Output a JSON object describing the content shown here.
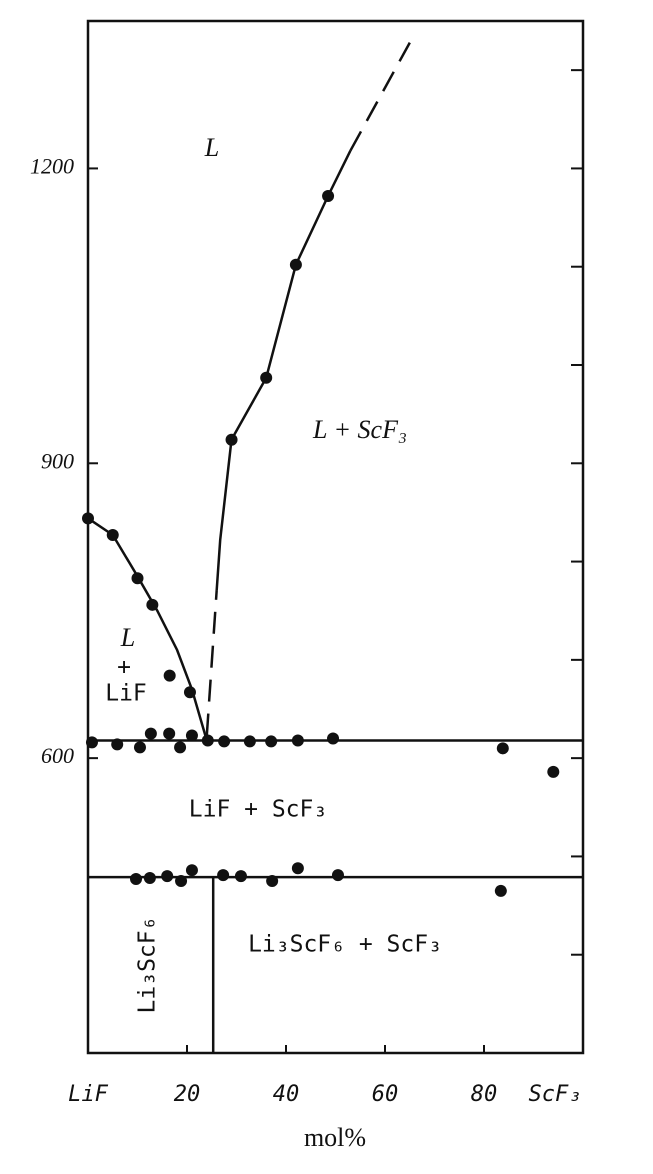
{
  "chart_data": {
    "type": "scatter",
    "xlabel": "mol%",
    "xlim": [
      0,
      100
    ],
    "xticks": [
      {
        "value": 0,
        "label": "LiF"
      },
      20,
      40,
      60,
      80,
      {
        "value": 100,
        "label": "ScF₃"
      }
    ],
    "ylim": [
      300,
      1350
    ],
    "yticks": [
      600,
      900,
      1200
    ],
    "yticks_minor": [
      400,
      500,
      700,
      800,
      1000,
      1100,
      1300
    ],
    "color": "#111111",
    "points": {
      "x": [
        0,
        5,
        10,
        13,
        16.5,
        20.6,
        29,
        36,
        42,
        48.5,
        0.8,
        5.9,
        10.5,
        12.7,
        16.4,
        18.6,
        21,
        24.2,
        27.5,
        32.7,
        37,
        42.4,
        49.5,
        83.8,
        94,
        9.7,
        12.5,
        16,
        18.8,
        21,
        27.3,
        30.9,
        37.2,
        42.4,
        50.5,
        83.4
      ],
      "y": [
        844,
        827,
        783,
        756,
        684,
        667,
        924,
        987,
        1102,
        1172,
        616,
        614,
        611,
        625,
        625,
        611,
        623,
        618,
        617,
        617,
        617,
        618,
        620,
        610,
        586,
        477,
        478,
        480,
        475,
        486,
        481,
        480,
        475,
        488,
        481,
        465
      ]
    },
    "lines": [
      {
        "x": [
          0,
          100
        ],
        "y": [
          618,
          618
        ],
        "dashed": false
      },
      {
        "x": [
          0,
          100
        ],
        "y": [
          479,
          479
        ],
        "dashed": false
      },
      {
        "x": [
          25.3,
          25.3
        ],
        "y": [
          479,
          300
        ],
        "dashed": false
      },
      {
        "x": [
          0,
          5,
          10,
          14,
          18,
          21,
          24
        ],
        "y": [
          844,
          827,
          785,
          750,
          710,
          670,
          618
        ],
        "dashed": false
      },
      {
        "x": [
          24,
          26
        ],
        "y": [
          623,
          771
        ],
        "dashed": true
      },
      {
        "x": [
          26,
          26.7,
          29,
          36,
          42,
          48.5,
          53
        ],
        "y": [
          771,
          822,
          924,
          987,
          1102,
          1172,
          1218
        ],
        "dashed": false
      },
      {
        "x": [
          53,
          65
        ],
        "y": [
          1218,
          1328
        ],
        "dashed": true
      }
    ],
    "annotations": [
      "L",
      "L + ScF₃",
      "L",
      "+",
      "LiF",
      "LiF + ScF₃",
      "Li₃ScF₆",
      "Li₃ScF₆ + ScF₃"
    ]
  }
}
